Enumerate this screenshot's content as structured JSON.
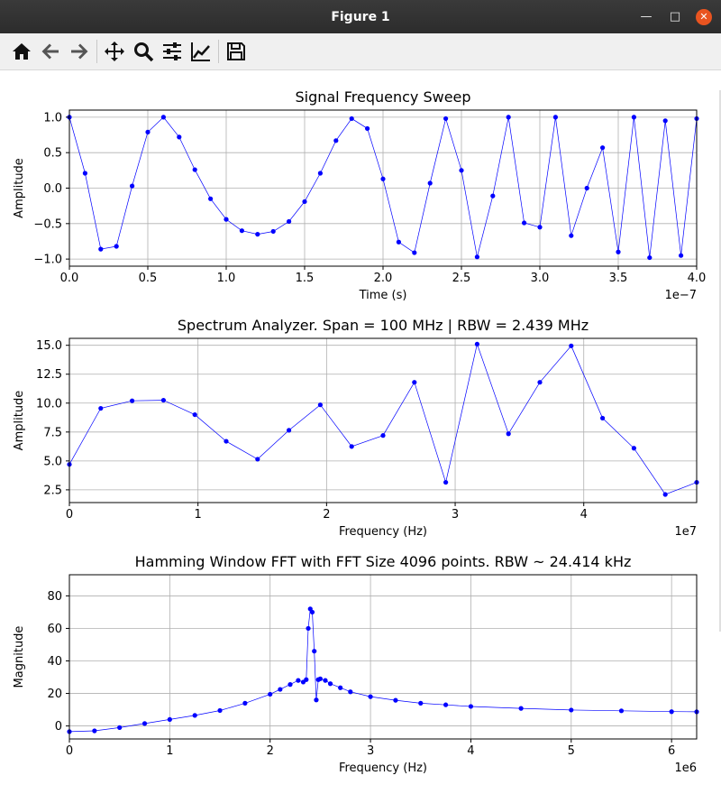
{
  "window": {
    "title": "Figure 1",
    "controls": [
      "minimize",
      "maximize",
      "close"
    ]
  },
  "toolbar": {
    "buttons": [
      {
        "icon": "home-icon",
        "action": "home"
      },
      {
        "icon": "back-arrow-icon",
        "action": "back"
      },
      {
        "icon": "forward-arrow-icon",
        "action": "forward"
      },
      {
        "icon": "pan-icon",
        "action": "pan"
      },
      {
        "icon": "zoom-icon",
        "action": "zoom"
      },
      {
        "icon": "subplots-config-icon",
        "action": "configure-subplots"
      },
      {
        "icon": "edit-axes-icon",
        "action": "edit-curves"
      },
      {
        "icon": "save-icon",
        "action": "save"
      }
    ]
  },
  "colors": {
    "series": "#0000ff",
    "grid": "#b0b0b0",
    "titlebar": "#2c2c2c",
    "close": "#e95420"
  },
  "chart_data": [
    {
      "type": "line",
      "title": "Signal Frequency Sweep",
      "xlabel": "Time (s)",
      "ylabel": "Amplitude",
      "x_offset_label": "1e−7",
      "xlim": [
        0,
        4.0
      ],
      "ylim": [
        -1.1,
        1.1
      ],
      "xticks": [
        0,
        0.5,
        1.0,
        1.5,
        2.0,
        2.5,
        3.0,
        3.5,
        4.0
      ],
      "xtick_labels": [
        "0.0",
        "0.5",
        "1.0",
        "1.5",
        "2.0",
        "2.5",
        "3.0",
        "3.5",
        "4.0"
      ],
      "yticks": [
        -1.0,
        -0.5,
        0.0,
        0.5,
        1.0
      ],
      "ytick_labels": [
        "−1.0",
        "−0.5",
        "0.0",
        "0.5",
        "1.0"
      ],
      "grid": true,
      "series": [
        {
          "x": [
            0,
            0.1,
            0.2,
            0.3,
            0.4,
            0.5,
            0.6,
            0.7,
            0.8,
            0.9,
            1.0,
            1.1,
            1.2,
            1.3,
            1.4,
            1.5,
            1.6,
            1.7,
            1.8,
            1.9,
            2.0,
            2.1,
            2.2,
            2.3,
            2.4,
            2.5,
            2.6,
            2.7,
            2.8,
            2.9,
            3.0,
            3.1,
            3.2,
            3.3,
            3.4,
            3.5,
            3.6,
            3.7,
            3.8,
            3.9,
            4.0
          ],
          "y": [
            1.0,
            0.21,
            -0.86,
            -0.82,
            0.03,
            0.79,
            1.0,
            0.72,
            0.26,
            -0.15,
            -0.44,
            -0.6,
            -0.65,
            -0.61,
            -0.47,
            -0.19,
            0.21,
            0.67,
            0.98,
            0.84,
            0.13,
            -0.76,
            -0.91,
            0.07,
            0.98,
            0.25,
            -0.97,
            -0.11,
            1.0,
            -0.49,
            -0.55,
            1.0,
            -0.67,
            0.0,
            0.57,
            -0.9,
            1.0,
            -0.98,
            0.95,
            -0.95,
            0.98
          ]
        }
      ]
    },
    {
      "type": "line",
      "title": "Spectrum Analyzer. Span = 100 MHz | RBW = 2.439 MHz",
      "xlabel": "Frequency (Hz)",
      "ylabel": "Amplitude",
      "x_offset_label": "1e7",
      "xlim": [
        0,
        4.878
      ],
      "ylim": [
        1.4,
        15.6
      ],
      "xticks": [
        0,
        1,
        2,
        3,
        4
      ],
      "xtick_labels": [
        "0",
        "1",
        "2",
        "3",
        "4"
      ],
      "yticks": [
        2.5,
        5.0,
        7.5,
        10.0,
        12.5,
        15.0
      ],
      "ytick_labels": [
        "2.5",
        "5.0",
        "7.5",
        "10.0",
        "12.5",
        "15.0"
      ],
      "grid": true,
      "series": [
        {
          "x": [
            0,
            0.2439,
            0.4878,
            0.7317,
            0.9756,
            1.2195,
            1.4634,
            1.7073,
            1.9512,
            2.1951,
            2.439,
            2.6829,
            2.9268,
            3.1707,
            3.4146,
            3.6585,
            3.9024,
            4.1463,
            4.3902,
            4.6341,
            4.878
          ],
          "y": [
            4.7,
            9.55,
            10.2,
            10.25,
            9.0,
            6.7,
            5.15,
            7.65,
            9.85,
            6.25,
            7.2,
            11.8,
            3.15,
            15.1,
            7.35,
            11.8,
            14.95,
            8.7,
            6.1,
            2.1,
            3.15
          ]
        }
      ]
    },
    {
      "type": "line",
      "title": "Hamming Window FFT with FFT Size 4096 points. RBW ~ 24.414 kHz",
      "xlabel": "Frequency (Hz)",
      "ylabel": "Magnitude",
      "x_offset_label": "1e6",
      "xlim": [
        0,
        6.25
      ],
      "ylim": [
        -8,
        93
      ],
      "xticks": [
        0,
        1,
        2,
        3,
        4,
        5,
        6
      ],
      "xtick_labels": [
        "0",
        "1",
        "2",
        "3",
        "4",
        "5",
        "6"
      ],
      "yticks": [
        0,
        20,
        40,
        60,
        80
      ],
      "ytick_labels": [
        "0",
        "20",
        "40",
        "60",
        "80"
      ],
      "grid": true,
      "series": [
        {
          "x": [
            0,
            0.25,
            0.5,
            0.75,
            1.0,
            1.25,
            1.5,
            1.75,
            2.0,
            2.1,
            2.2,
            2.28,
            2.33,
            2.36,
            2.38,
            2.4,
            2.42,
            2.44,
            2.46,
            2.48,
            2.5,
            2.55,
            2.6,
            2.7,
            2.8,
            3.0,
            3.25,
            3.5,
            3.75,
            4.0,
            4.5,
            5.0,
            5.5,
            6.0,
            6.25
          ],
          "y": [
            -3.5,
            -3.0,
            -1.0,
            1.5,
            4.0,
            6.5,
            9.5,
            14.0,
            19.5,
            22.5,
            25.5,
            28.0,
            27.0,
            28.5,
            60.0,
            72.0,
            70.0,
            46.0,
            16.0,
            28.5,
            29.0,
            28.0,
            26.0,
            23.5,
            21.0,
            18.0,
            15.8,
            14.0,
            13.0,
            12.0,
            10.8,
            9.8,
            9.3,
            8.8,
            8.7
          ]
        }
      ]
    }
  ]
}
